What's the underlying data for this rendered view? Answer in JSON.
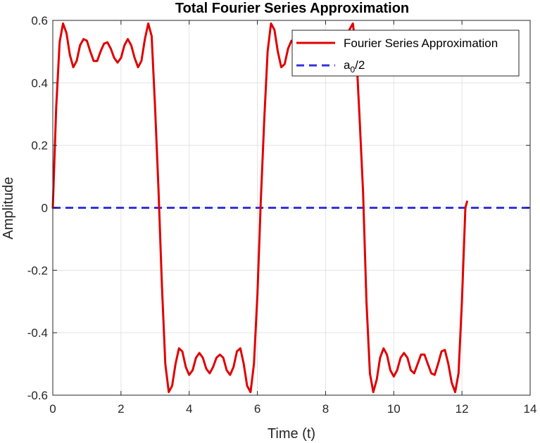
{
  "chart_data": {
    "type": "line",
    "title": "Total Fourier Series Approximation",
    "xlabel": "Time (t)",
    "ylabel": "Amplitude",
    "xlim": [
      0,
      14
    ],
    "ylim": [
      -0.6,
      0.6
    ],
    "xticks": [
      0,
      2,
      4,
      6,
      8,
      10,
      12,
      14
    ],
    "xtick_labels": [
      "0",
      "2",
      "4",
      "6",
      "8",
      "10",
      "12",
      "14"
    ],
    "yticks": [
      -0.6,
      -0.4,
      -0.2,
      0,
      0.2,
      0.4,
      0.6
    ],
    "ytick_labels": [
      "-0.6",
      "-0.4",
      "-0.2",
      "0",
      "0.2",
      "0.4",
      "0.6"
    ],
    "grid": true,
    "legend_position": "top-right",
    "series": [
      {
        "name": "Fourier Series Approximation",
        "style": "solid",
        "color": "#e00000",
        "points": [
          [
            0.0,
            0.0
          ],
          [
            0.1,
            0.32
          ],
          [
            0.2,
            0.53
          ],
          [
            0.3,
            0.59
          ],
          [
            0.4,
            0.56
          ],
          [
            0.5,
            0.49
          ],
          [
            0.6,
            0.45
          ],
          [
            0.7,
            0.47
          ],
          [
            0.8,
            0.52
          ],
          [
            0.9,
            0.54
          ],
          [
            1.0,
            0.535
          ],
          [
            1.1,
            0.5
          ],
          [
            1.2,
            0.47
          ],
          [
            1.3,
            0.47
          ],
          [
            1.4,
            0.5
          ],
          [
            1.5,
            0.525
          ],
          [
            1.6,
            0.53
          ],
          [
            1.7,
            0.51
          ],
          [
            1.8,
            0.48
          ],
          [
            1.9,
            0.465
          ],
          [
            2.0,
            0.48
          ],
          [
            2.1,
            0.52
          ],
          [
            2.2,
            0.54
          ],
          [
            2.3,
            0.52
          ],
          [
            2.4,
            0.48
          ],
          [
            2.5,
            0.45
          ],
          [
            2.6,
            0.47
          ],
          [
            2.7,
            0.54
          ],
          [
            2.8,
            0.59
          ],
          [
            2.9,
            0.55
          ],
          [
            3.0,
            0.32
          ],
          [
            3.1,
            0.06
          ],
          [
            3.2,
            -0.25
          ],
          [
            3.3,
            -0.5
          ],
          [
            3.4,
            -0.59
          ],
          [
            3.5,
            -0.57
          ],
          [
            3.6,
            -0.5
          ],
          [
            3.7,
            -0.45
          ],
          [
            3.8,
            -0.46
          ],
          [
            3.9,
            -0.51
          ],
          [
            4.0,
            -0.535
          ],
          [
            4.1,
            -0.52
          ],
          [
            4.2,
            -0.48
          ],
          [
            4.3,
            -0.465
          ],
          [
            4.4,
            -0.48
          ],
          [
            4.5,
            -0.515
          ],
          [
            4.6,
            -0.53
          ],
          [
            4.7,
            -0.51
          ],
          [
            4.8,
            -0.48
          ],
          [
            4.9,
            -0.47
          ],
          [
            5.0,
            -0.48
          ],
          [
            5.1,
            -0.52
          ],
          [
            5.2,
            -0.535
          ],
          [
            5.3,
            -0.51
          ],
          [
            5.4,
            -0.46
          ],
          [
            5.5,
            -0.45
          ],
          [
            5.6,
            -0.5
          ],
          [
            5.7,
            -0.57
          ],
          [
            5.8,
            -0.59
          ],
          [
            5.9,
            -0.5
          ],
          [
            6.0,
            -0.28
          ],
          [
            6.1,
            0.02
          ],
          [
            6.2,
            0.28
          ],
          [
            6.3,
            0.5
          ],
          [
            6.4,
            0.59
          ],
          [
            6.5,
            0.57
          ],
          [
            6.6,
            0.5
          ],
          [
            6.7,
            0.45
          ],
          [
            6.8,
            0.46
          ],
          [
            6.9,
            0.51
          ],
          [
            7.0,
            0.535
          ],
          [
            7.1,
            0.52
          ],
          [
            7.2,
            0.48
          ],
          [
            7.3,
            0.465
          ],
          [
            7.4,
            0.48
          ],
          [
            7.5,
            0.515
          ],
          [
            7.6,
            0.53
          ],
          [
            7.7,
            0.51
          ],
          [
            7.8,
            0.48
          ],
          [
            7.9,
            0.47
          ],
          [
            8.0,
            0.48
          ],
          [
            8.1,
            0.52
          ],
          [
            8.2,
            0.535
          ],
          [
            8.3,
            0.51
          ],
          [
            8.4,
            0.46
          ],
          [
            8.5,
            0.45
          ],
          [
            8.6,
            0.5
          ],
          [
            8.7,
            0.57
          ],
          [
            8.8,
            0.59
          ],
          [
            8.9,
            0.5
          ],
          [
            9.0,
            0.28
          ],
          [
            9.1,
            0.05
          ],
          [
            9.2,
            -0.3
          ],
          [
            9.3,
            -0.53
          ],
          [
            9.4,
            -0.59
          ],
          [
            9.5,
            -0.55
          ],
          [
            9.6,
            -0.48
          ],
          [
            9.7,
            -0.45
          ],
          [
            9.8,
            -0.47
          ],
          [
            9.9,
            -0.52
          ],
          [
            10.0,
            -0.54
          ],
          [
            10.1,
            -0.52
          ],
          [
            10.2,
            -0.48
          ],
          [
            10.3,
            -0.465
          ],
          [
            10.4,
            -0.48
          ],
          [
            10.5,
            -0.52
          ],
          [
            10.6,
            -0.53
          ],
          [
            10.7,
            -0.5
          ],
          [
            10.8,
            -0.47
          ],
          [
            10.9,
            -0.47
          ],
          [
            11.0,
            -0.5
          ],
          [
            11.1,
            -0.53
          ],
          [
            11.2,
            -0.535
          ],
          [
            11.3,
            -0.5
          ],
          [
            11.4,
            -0.46
          ],
          [
            11.5,
            -0.455
          ],
          [
            11.6,
            -0.5
          ],
          [
            11.7,
            -0.56
          ],
          [
            11.8,
            -0.59
          ],
          [
            11.9,
            -0.53
          ],
          [
            12.0,
            -0.3
          ],
          [
            12.1,
            0.0
          ],
          [
            12.15,
            0.02
          ]
        ]
      },
      {
        "name": "a_0/2",
        "style": "dashed",
        "color": "#3333dd",
        "points": [
          [
            0,
            0
          ],
          [
            14,
            0
          ]
        ]
      }
    ]
  },
  "legend": {
    "entries": [
      {
        "text": "Fourier Series Approximation"
      },
      {
        "base": "a",
        "sub": "0",
        "rest": "/2"
      }
    ]
  }
}
